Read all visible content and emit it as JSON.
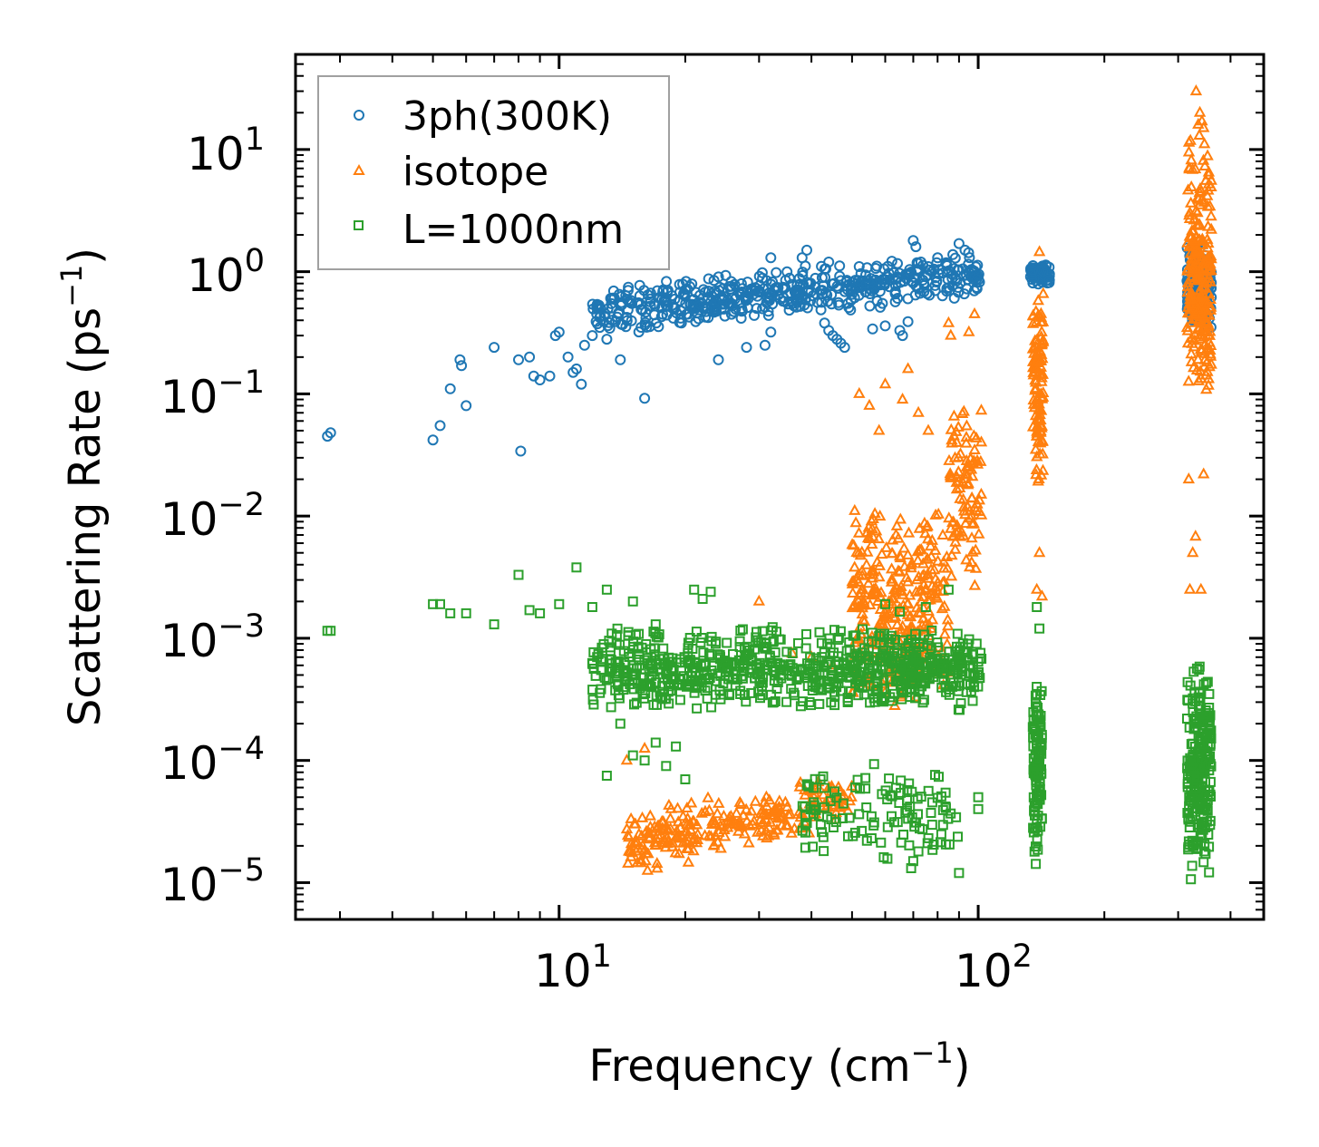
{
  "chart_data": {
    "type": "scatter",
    "xscale": "log",
    "yscale": "log",
    "xlim": [
      2.35,
      480
    ],
    "ylim": [
      5e-06,
      60
    ],
    "xlabel": {
      "text": "Frequency (cm",
      "sup": "−1",
      "close": ")"
    },
    "ylabel": {
      "text": "Scattering Rate (ps",
      "sup": "−1",
      "close": ")"
    },
    "xticks": [
      {
        "value": 10,
        "base": "10",
        "exp": "1"
      },
      {
        "value": 100,
        "base": "10",
        "exp": "2"
      }
    ],
    "yticks": [
      {
        "value": 1e-05,
        "base": "10",
        "exp": "−5"
      },
      {
        "value": 0.0001,
        "base": "10",
        "exp": "−4"
      },
      {
        "value": 0.001,
        "base": "10",
        "exp": "−3"
      },
      {
        "value": 0.01,
        "base": "10",
        "exp": "−2"
      },
      {
        "value": 0.1,
        "base": "10",
        "exp": "−1"
      },
      {
        "value": 1,
        "base": "10",
        "exp": "0"
      },
      {
        "value": 10,
        "base": "10",
        "exp": "1"
      }
    ],
    "legend_position": "top-left",
    "series": [
      {
        "name": "3ph(300K)",
        "marker": "circle",
        "color": "#1f77b4",
        "points": [
          [
            2.8,
            0.045
          ],
          [
            2.85,
            0.048
          ],
          [
            5.0,
            0.042
          ],
          [
            5.2,
            0.055
          ],
          [
            5.5,
            0.11
          ],
          [
            5.8,
            0.19
          ],
          [
            5.85,
            0.17
          ],
          [
            6.0,
            0.08
          ],
          [
            7.0,
            0.24
          ],
          [
            8.0,
            0.19
          ],
          [
            8.1,
            0.034
          ],
          [
            8.5,
            0.2
          ],
          [
            8.7,
            0.14
          ],
          [
            9.0,
            0.13
          ],
          [
            9.5,
            0.14
          ],
          [
            9.8,
            0.3
          ],
          [
            10.0,
            0.32
          ],
          [
            10.5,
            0.2
          ],
          [
            10.8,
            0.15
          ],
          [
            11.0,
            0.16
          ],
          [
            11.3,
            0.12
          ],
          [
            11.5,
            0.25
          ],
          [
            12.0,
            0.3
          ],
          [
            12.5,
            0.35
          ],
          [
            13.0,
            0.28
          ],
          [
            14.0,
            0.19
          ],
          [
            16.0,
            0.092
          ],
          [
            24.0,
            0.19
          ],
          [
            28.0,
            0.24
          ],
          [
            31.0,
            0.25
          ],
          [
            32.0,
            0.32
          ],
          [
            48.0,
            0.24
          ],
          [
            47.0,
            0.26
          ],
          [
            46.0,
            0.28
          ],
          [
            45.0,
            0.3
          ],
          [
            44.0,
            0.33
          ],
          [
            43.0,
            0.38
          ],
          [
            56.0,
            0.34
          ],
          [
            60.0,
            0.36
          ],
          [
            65.0,
            0.33
          ],
          [
            66.0,
            0.3
          ],
          [
            68.0,
            0.39
          ],
          [
            70.0,
            1.8
          ],
          [
            71.0,
            1.6
          ],
          [
            38.0,
            1.3
          ],
          [
            39.0,
            1.5
          ],
          [
            44.0,
            1.2
          ],
          [
            32.0,
            1.3
          ],
          [
            52.0,
            1.1
          ],
          [
            90.0,
            1.7
          ],
          [
            93.0,
            1.5
          ],
          [
            73.0,
            1.2
          ],
          [
            76.0,
            1.1
          ],
          [
            80.0,
            1.3
          ],
          [
            84.0,
            1.15
          ]
        ],
        "band": [
          {
            "x0": 12.0,
            "x1": 101.0,
            "logy_low": -0.55,
            "logy_high": -0.12,
            "slope_low": 0.35,
            "slope_high": 0.34,
            "n": 520
          },
          {
            "x0": 133.0,
            "x1": 148.0,
            "logy_low": -0.12,
            "logy_high": 0.08,
            "slope_low": 0,
            "slope_high": 0,
            "n": 70
          },
          {
            "x0": 315.0,
            "x1": 360.0,
            "logy_low": -0.55,
            "logy_high": 0.25,
            "slope_low": 0,
            "slope_high": 0,
            "n": 150
          }
        ]
      },
      {
        "name": "isotope",
        "marker": "triangle",
        "color": "#ff7f0e",
        "points": [
          [
            16.0,
            0.000125
          ],
          [
            14.5,
            0.0001
          ],
          [
            16.5,
            3.5e-05
          ],
          [
            18.5,
            4e-05
          ],
          [
            27.0,
            4.5e-05
          ],
          [
            30.0,
            0.002
          ],
          [
            36.0,
            0.00075
          ],
          [
            40.0,
            0.0007
          ],
          [
            45.0,
            0.0006
          ],
          [
            52.0,
            0.1
          ],
          [
            55.0,
            0.08
          ],
          [
            58.0,
            0.05
          ],
          [
            60.0,
            0.12
          ],
          [
            66.0,
            0.09
          ],
          [
            68.0,
            0.16
          ],
          [
            72.0,
            0.07
          ],
          [
            76.0,
            0.05
          ],
          [
            85.0,
            0.38
          ],
          [
            86.0,
            0.3
          ],
          [
            95.0,
            0.32
          ],
          [
            98.0,
            0.45
          ],
          [
            140.0,
            1.45
          ],
          [
            140.0,
            0.005
          ],
          [
            138.0,
            0.0025
          ],
          [
            142.0,
            0.0022
          ],
          [
            320.0,
            0.0025
          ],
          [
            325.0,
            0.005
          ],
          [
            330.0,
            0.0068
          ],
          [
            340.0,
            0.0025
          ],
          [
            318.0,
            0.02
          ],
          [
            345.0,
            0.022
          ],
          [
            338.0,
            20.0
          ],
          [
            342.0,
            17.0
          ],
          [
            345.0,
            15.0
          ],
          [
            331.0,
            30.0
          ],
          [
            337.0,
            13.0
          ],
          [
            335.0,
            16.0
          ]
        ],
        "band": [
          {
            "x0": 14.5,
            "x1": 50.0,
            "logy_low": -5.0,
            "logy_high": -4.4,
            "slope_low": 0.9,
            "slope_high": 0.6,
            "n": 260
          },
          {
            "x0": 50.0,
            "x1": 85.0,
            "logy_low": -3.6,
            "logy_high": -1.9,
            "slope_low": 0,
            "slope_high": 0,
            "n": 320
          },
          {
            "x0": 85.0,
            "x1": 102.0,
            "logy_low": -2.6,
            "logy_high": -1.0,
            "slope_low": 0,
            "slope_high": 0,
            "n": 100
          },
          {
            "x0": 135.0,
            "x1": 143.0,
            "logy_low": -1.8,
            "logy_high": -0.1,
            "slope_low": 0,
            "slope_high": 0,
            "n": 110
          },
          {
            "x0": 315.0,
            "x1": 360.0,
            "logy_low": -1.2,
            "logy_high": 1.1,
            "slope_low": 0,
            "slope_high": 0,
            "n": 250
          }
        ]
      },
      {
        "name": "L=1000nm",
        "marker": "square",
        "color": "#2ca02c",
        "points": [
          [
            2.8,
            0.00115
          ],
          [
            2.85,
            0.00115
          ],
          [
            5.0,
            0.0019
          ],
          [
            5.2,
            0.0019
          ],
          [
            5.5,
            0.0016
          ],
          [
            6.0,
            0.0016
          ],
          [
            7.0,
            0.0013
          ],
          [
            8.0,
            0.0033
          ],
          [
            8.5,
            0.0017
          ],
          [
            9.0,
            0.0016
          ],
          [
            10.0,
            0.0019
          ],
          [
            11.0,
            0.0038
          ],
          [
            12.0,
            0.0018
          ],
          [
            13.0,
            0.0025
          ],
          [
            15.0,
            0.002
          ],
          [
            17.0,
            0.0013
          ],
          [
            21.0,
            0.0025
          ],
          [
            22.0,
            0.0021
          ],
          [
            23.0,
            0.0024
          ],
          [
            13.0,
            7.5e-05
          ],
          [
            14.0,
            0.0002
          ],
          [
            16.0,
            0.0001
          ],
          [
            18.0,
            9e-05
          ],
          [
            20.0,
            7e-05
          ],
          [
            17.0,
            0.00014
          ],
          [
            19.0,
            0.00013
          ],
          [
            15.0,
            0.00011
          ],
          [
            17.5,
            0.00033
          ],
          [
            85.0,
            0.0025
          ],
          [
            75.0,
            0.0018
          ],
          [
            100.0,
            5e-05
          ],
          [
            100.0,
            4e-05
          ],
          [
            70.0,
            1.5e-05
          ],
          [
            72.0,
            1.8e-05
          ],
          [
            90.0,
            1.2e-05
          ],
          [
            138.0,
            0.0018
          ],
          [
            140.0,
            0.0012
          ],
          [
            60.0,
            0.0019
          ],
          [
            65.0,
            0.00165
          ]
        ],
        "band": [
          {
            "x0": 12.0,
            "x1": 102.0,
            "logy_low": -3.6,
            "logy_high": -2.9,
            "slope_low": 0,
            "slope_high": 0,
            "n": 780
          },
          {
            "x0": 38.0,
            "x1": 90.0,
            "logy_low": -4.9,
            "logy_high": -4.0,
            "slope_low": 0,
            "slope_high": 0,
            "n": 120
          },
          {
            "x0": 135.0,
            "x1": 142.0,
            "logy_low": -5.0,
            "logy_high": -3.2,
            "slope_low": 0,
            "slope_high": 0,
            "n": 110
          },
          {
            "x0": 315.0,
            "x1": 360.0,
            "logy_low": -5.0,
            "logy_high": -3.15,
            "slope_low": 0,
            "slope_high": 0,
            "n": 240
          }
        ]
      }
    ]
  }
}
